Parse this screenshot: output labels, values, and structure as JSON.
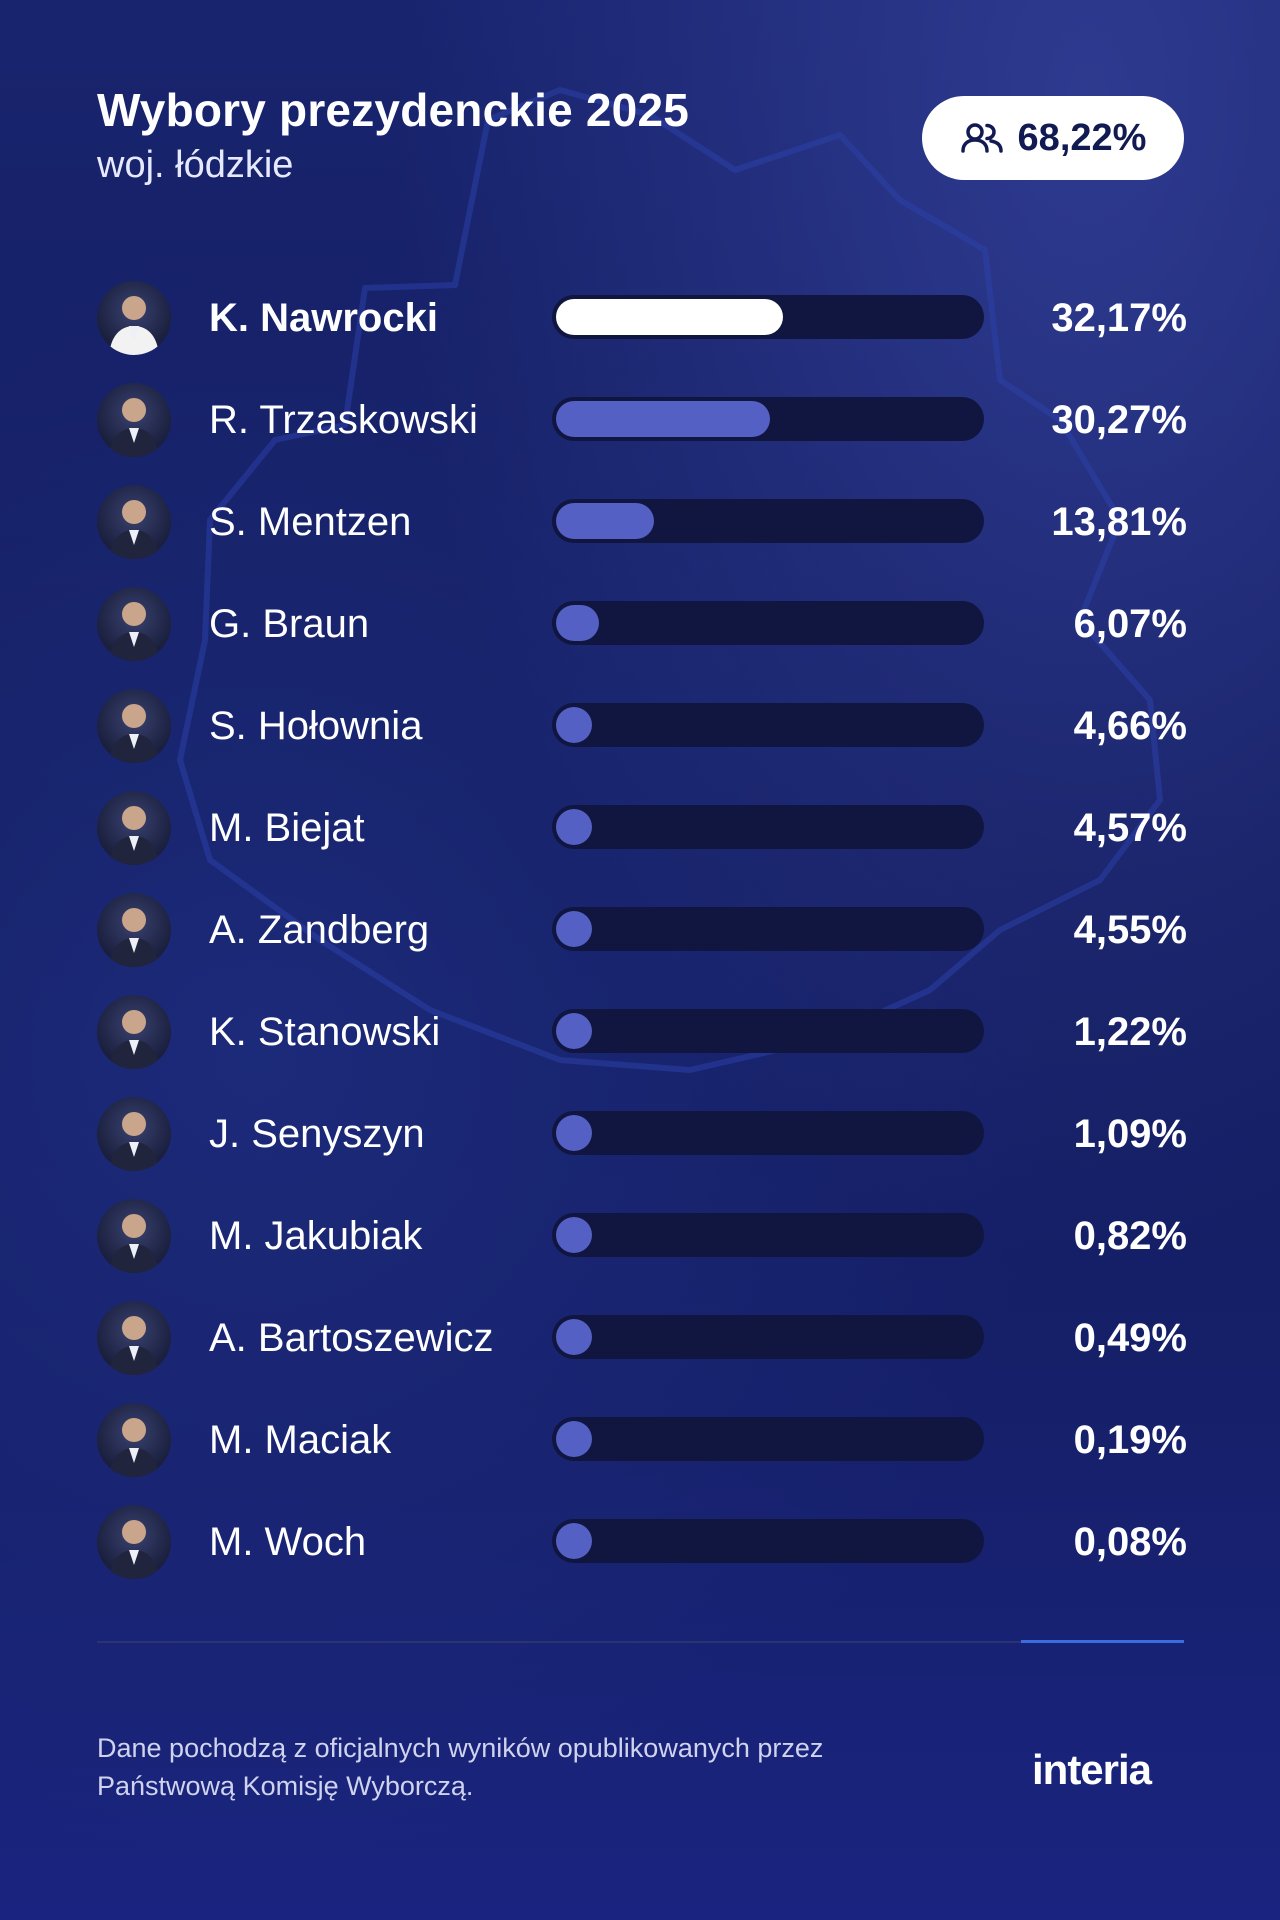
{
  "header": {
    "title": "Wybory prezydenckie 2025",
    "subtitle": "woj. łódzkie"
  },
  "turnout": {
    "icon": "people-icon",
    "value": "68,22%"
  },
  "colors": {
    "winner_bar": "#ffffff",
    "bar": "#5460c4",
    "track": "#10163f",
    "background": "#16206b"
  },
  "chart_data": {
    "type": "bar",
    "orientation": "horizontal",
    "title": "Wybory prezydenckie 2025",
    "subtitle": "woj. łódzkie",
    "xlim": [
      0,
      60
    ],
    "categories": [
      "K. Nawrocki",
      "R. Trzaskowski",
      "S. Mentzen",
      "G. Braun",
      "S. Hołownia",
      "M. Biejat",
      "A. Zandberg",
      "K. Stanowski",
      "J. Senyszyn",
      "M. Jakubiak",
      "A. Bartoszewicz",
      "M. Maciak",
      "M. Woch"
    ],
    "values": [
      32.17,
      30.27,
      13.81,
      6.07,
      4.66,
      4.57,
      4.55,
      1.22,
      1.09,
      0.82,
      0.49,
      0.19,
      0.08
    ],
    "labels": [
      "32,17%",
      "30,27%",
      "13,81%",
      "6,07%",
      "4,66%",
      "4,57%",
      "4,55%",
      "1,22%",
      "1,09%",
      "0,82%",
      "0,49%",
      "0,19%",
      "0,08%"
    ],
    "unit": "%"
  },
  "footer": {
    "note": "Dane pochodzą z oficjalnych wyników opublikowanych przez Państwową Komisję Wyborczą.",
    "logo": "interia"
  }
}
